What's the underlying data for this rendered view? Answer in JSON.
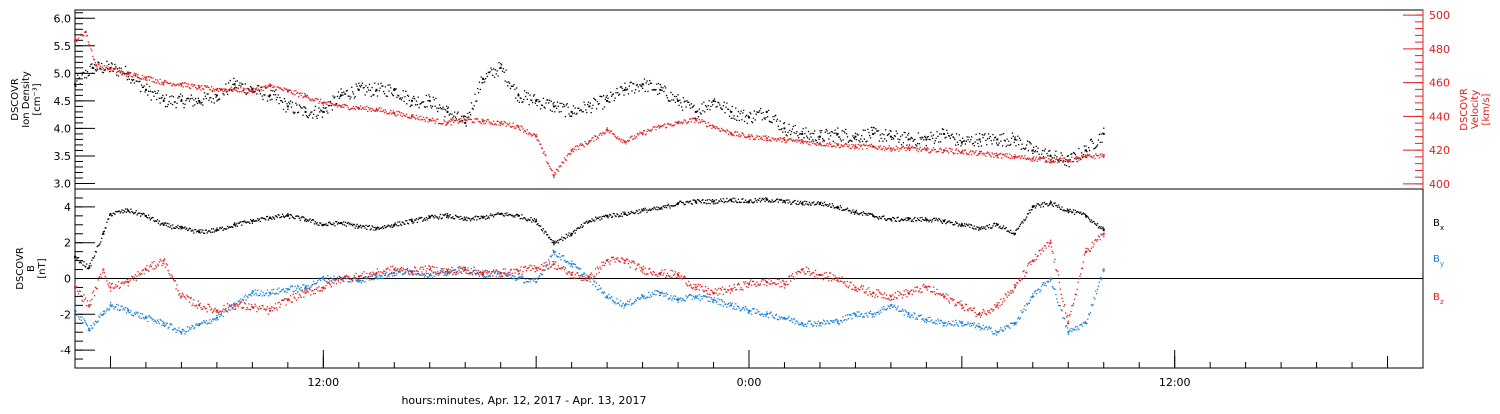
{
  "chart_data": [
    {
      "type": "scatter",
      "panel": "top",
      "ylabel_left": [
        "DSCOVR",
        "Ion Density",
        "[cm⁻³]"
      ],
      "ylabel_right": [
        "DSCOVR",
        "Velocity",
        "[km/s]"
      ],
      "ylim_left": [
        2.9,
        6.15
      ],
      "ylim_right": [
        397,
        503
      ],
      "yticks_left": [
        "3.0",
        "3.5",
        "4.0",
        "4.5",
        "5.0",
        "5.5",
        "6.0"
      ],
      "yticks_right": [
        "400",
        "420",
        "440",
        "460",
        "480",
        "500"
      ],
      "x_unit": "hours since Apr. 12, 2017 00:00",
      "xlim": [
        5.0,
        43.0
      ],
      "series": [
        {
          "axis": "left",
          "color": "#000000",
          "x": [
            5.0,
            5.5,
            6.0,
            6.5,
            7.0,
            7.5,
            8.0,
            8.5,
            9.0,
            9.5,
            10.0,
            10.5,
            11.0,
            11.5,
            12.0,
            12.5,
            13.0,
            13.5,
            14.0,
            14.5,
            15.0,
            15.5,
            16.0,
            16.5,
            17.0,
            17.5,
            18.0,
            18.5,
            19.0,
            19.5,
            20.0,
            20.5,
            21.0,
            21.5,
            22.0,
            22.5,
            23.0,
            23.5,
            24.0,
            24.5,
            25.0,
            25.5,
            26.0,
            26.5,
            27.0,
            27.5,
            28.0,
            28.5,
            29.0,
            29.5,
            30.0,
            30.5,
            31.0,
            31.5,
            32.0,
            32.5,
            33.0,
            33.5,
            34.0
          ],
          "y": [
            4.8,
            5.1,
            5.1,
            5.0,
            4.7,
            4.5,
            4.5,
            4.5,
            4.6,
            4.8,
            4.7,
            4.6,
            4.4,
            4.3,
            4.3,
            4.6,
            4.7,
            4.7,
            4.7,
            4.5,
            4.5,
            4.3,
            4.1,
            4.9,
            5.1,
            4.6,
            4.5,
            4.4,
            4.3,
            4.4,
            4.5,
            4.7,
            4.8,
            4.7,
            4.5,
            4.3,
            4.5,
            4.3,
            4.2,
            4.3,
            4.0,
            3.9,
            3.85,
            3.9,
            3.85,
            3.9,
            3.85,
            3.8,
            3.8,
            3.9,
            3.75,
            3.8,
            3.8,
            3.8,
            3.6,
            3.5,
            3.4,
            3.6,
            3.9
          ]
        },
        {
          "axis": "right",
          "color": "#e02020",
          "x": [
            5.0,
            5.3,
            5.6,
            6.0,
            6.5,
            7.0,
            7.5,
            8.0,
            8.5,
            9.0,
            9.5,
            10.0,
            10.5,
            11.0,
            11.5,
            12.0,
            12.5,
            13.0,
            13.5,
            14.0,
            14.5,
            15.0,
            15.5,
            16.0,
            16.5,
            17.0,
            17.5,
            18.0,
            18.5,
            19.0,
            19.5,
            20.0,
            20.5,
            21.0,
            21.5,
            22.0,
            22.5,
            23.0,
            23.5,
            24.0,
            24.5,
            25.0,
            25.5,
            26.0,
            26.5,
            27.0,
            27.5,
            28.0,
            28.5,
            29.0,
            29.5,
            30.0,
            30.5,
            31.0,
            31.5,
            32.0,
            32.5,
            33.0,
            33.5,
            34.0
          ],
          "y": [
            485,
            490,
            470,
            468,
            465,
            463,
            460,
            459,
            457,
            456,
            456,
            455,
            458,
            455,
            452,
            448,
            446,
            445,
            444,
            442,
            440,
            438,
            436,
            438,
            437,
            436,
            434,
            428,
            405,
            420,
            425,
            432,
            425,
            430,
            434,
            436,
            438,
            434,
            430,
            428,
            427,
            426,
            425,
            424,
            423,
            422,
            422,
            421,
            421,
            420,
            420,
            419,
            418,
            417,
            416,
            415,
            414,
            414,
            416,
            417
          ]
        }
      ]
    },
    {
      "type": "scatter",
      "panel": "bottom",
      "ylabel": [
        "DSCOVR",
        "B",
        "[nT]"
      ],
      "ylim": [
        -5.0,
        5.0
      ],
      "yticks": [
        "-4",
        "-2",
        "0",
        "2",
        "4"
      ],
      "x_unit": "hours since Apr. 12, 2017 00:00",
      "xlim": [
        5.0,
        43.0
      ],
      "zero_line": true,
      "series": [
        {
          "name": "B",
          "subscript": "x",
          "color": "#000000",
          "x": [
            5.0,
            5.4,
            5.8,
            6.0,
            6.5,
            7.0,
            7.5,
            8.0,
            8.5,
            9.0,
            9.5,
            10.0,
            10.5,
            11.0,
            11.5,
            12.0,
            12.5,
            13.0,
            13.5,
            14.0,
            14.5,
            15.0,
            15.5,
            16.0,
            16.5,
            17.0,
            17.5,
            18.0,
            18.5,
            19.0,
            19.5,
            20.0,
            20.5,
            21.0,
            21.5,
            22.0,
            22.5,
            23.0,
            23.5,
            24.0,
            24.5,
            25.0,
            25.5,
            26.0,
            26.5,
            27.0,
            27.5,
            28.0,
            28.5,
            29.0,
            29.5,
            30.0,
            30.5,
            31.0,
            31.5,
            32.0,
            32.5,
            33.0,
            33.5,
            34.0
          ],
          "y": [
            1.2,
            0.6,
            2.5,
            3.6,
            3.8,
            3.5,
            3.0,
            2.8,
            2.6,
            2.7,
            3.0,
            3.2,
            3.4,
            3.5,
            3.3,
            3.0,
            3.1,
            2.9,
            2.8,
            3.0,
            3.2,
            3.4,
            3.5,
            3.3,
            3.4,
            3.6,
            3.5,
            3.2,
            2.0,
            2.5,
            3.2,
            3.5,
            3.6,
            3.8,
            3.9,
            4.2,
            4.3,
            4.3,
            4.4,
            4.3,
            4.4,
            4.3,
            4.2,
            4.2,
            4.0,
            3.7,
            3.5,
            3.3,
            3.3,
            3.3,
            3.2,
            3.0,
            2.8,
            3.0,
            2.5,
            4.0,
            4.2,
            3.8,
            3.5,
            2.7
          ]
        },
        {
          "name": "B",
          "subscript": "y",
          "color": "#1a7fd4",
          "x": [
            5.0,
            5.4,
            5.8,
            6.0,
            6.5,
            7.0,
            7.5,
            8.0,
            8.5,
            9.0,
            9.5,
            10.0,
            10.5,
            11.0,
            11.5,
            12.0,
            12.5,
            13.0,
            13.5,
            14.0,
            14.5,
            15.0,
            15.5,
            16.0,
            16.5,
            17.0,
            17.5,
            18.0,
            18.5,
            19.0,
            19.5,
            20.0,
            20.5,
            21.0,
            21.5,
            22.0,
            22.5,
            23.0,
            23.5,
            24.0,
            24.5,
            25.0,
            25.5,
            26.0,
            26.5,
            27.0,
            27.5,
            28.0,
            28.5,
            29.0,
            29.5,
            30.0,
            30.5,
            31.0,
            31.5,
            32.0,
            32.5,
            33.0,
            33.5,
            34.0
          ],
          "y": [
            -1.8,
            -2.8,
            -2.0,
            -1.5,
            -1.8,
            -2.2,
            -2.5,
            -3.0,
            -2.6,
            -2.2,
            -1.5,
            -0.8,
            -0.8,
            -0.6,
            -0.5,
            0.0,
            0.0,
            -0.1,
            0.1,
            0.3,
            0.4,
            0.2,
            0.3,
            0.5,
            0.2,
            0.3,
            0.0,
            -0.2,
            1.5,
            0.8,
            0.0,
            -1.0,
            -1.5,
            -1.0,
            -0.8,
            -1.2,
            -1.0,
            -1.2,
            -1.5,
            -1.8,
            -2.0,
            -2.2,
            -2.5,
            -2.5,
            -2.4,
            -2.0,
            -2.0,
            -1.5,
            -2.0,
            -2.3,
            -2.5,
            -2.5,
            -2.7,
            -3.0,
            -2.5,
            -1.0,
            0.0,
            -3.0,
            -2.5,
            0.5
          ]
        },
        {
          "name": "B",
          "subscript": "z",
          "color": "#e02020",
          "x": [
            5.0,
            5.4,
            5.8,
            6.0,
            6.5,
            7.0,
            7.5,
            8.0,
            8.5,
            9.0,
            9.5,
            10.0,
            10.5,
            11.0,
            11.5,
            12.0,
            12.5,
            13.0,
            13.5,
            14.0,
            14.5,
            15.0,
            15.5,
            16.0,
            16.5,
            17.0,
            17.5,
            18.0,
            18.5,
            19.0,
            19.5,
            20.0,
            20.5,
            21.0,
            21.5,
            22.0,
            22.5,
            23.0,
            23.5,
            24.0,
            24.5,
            25.0,
            25.5,
            26.0,
            26.5,
            27.0,
            27.5,
            28.0,
            28.5,
            29.0,
            29.5,
            30.0,
            30.5,
            31.0,
            31.5,
            32.0,
            32.5,
            33.0,
            33.5,
            34.0
          ],
          "y": [
            -0.5,
            -1.5,
            0.5,
            -0.5,
            -0.2,
            0.5,
            1.0,
            -1.0,
            -1.5,
            -1.8,
            -1.5,
            -1.6,
            -1.8,
            -1.2,
            -0.8,
            -0.5,
            0.0,
            0.1,
            0.3,
            0.5,
            0.4,
            0.5,
            0.4,
            0.5,
            0.3,
            0.3,
            0.4,
            0.6,
            0.8,
            0.2,
            0.0,
            1.0,
            1.0,
            0.5,
            0.3,
            0.2,
            -0.5,
            -0.8,
            -0.6,
            -0.3,
            -0.2,
            -0.3,
            0.5,
            0.2,
            0.0,
            -0.5,
            -0.8,
            -1.0,
            -0.8,
            -0.5,
            -1.0,
            -1.5,
            -2.0,
            -1.5,
            -0.5,
            1.0,
            2.0,
            -2.5,
            1.5,
            2.5
          ]
        }
      ]
    }
  ],
  "x_axis": {
    "ticks": [
      {
        "hour": 12,
        "label": "12:00"
      },
      {
        "hour": 24,
        "label": "0:00"
      },
      {
        "hour": 36,
        "label": "12:00"
      }
    ],
    "xlabel": "hours:minutes, Apr. 12, 2017 - Apr. 13, 2017"
  }
}
